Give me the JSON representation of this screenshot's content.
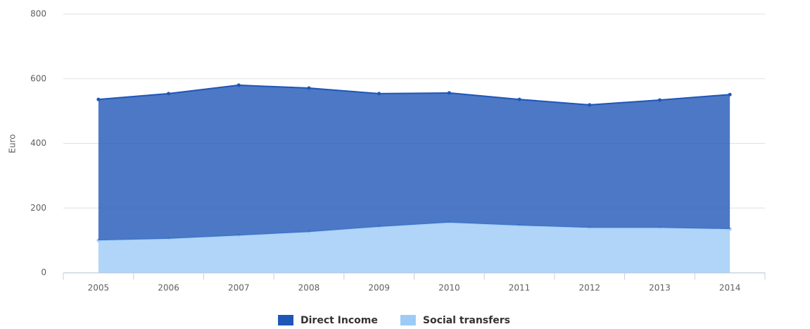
{
  "chart_data": {
    "type": "area",
    "stacked": true,
    "y_label": "Euro",
    "categories": [
      "2005",
      "2006",
      "2007",
      "2008",
      "2009",
      "2010",
      "2011",
      "2012",
      "2013",
      "2014"
    ],
    "series": [
      {
        "name": "Direct Income",
        "color": "#1f56b8",
        "values": [
          436,
          449,
          465,
          445,
          412,
          401,
          390,
          380,
          395,
          416
        ]
      },
      {
        "name": "Social transfers",
        "color": "#9ccbf6",
        "values": [
          100,
          105,
          115,
          126,
          142,
          155,
          146,
          139,
          139,
          135
        ]
      }
    ],
    "ylim": [
      0,
      800
    ],
    "yticks": [
      0,
      200,
      400,
      600,
      800
    ],
    "grid": true
  }
}
